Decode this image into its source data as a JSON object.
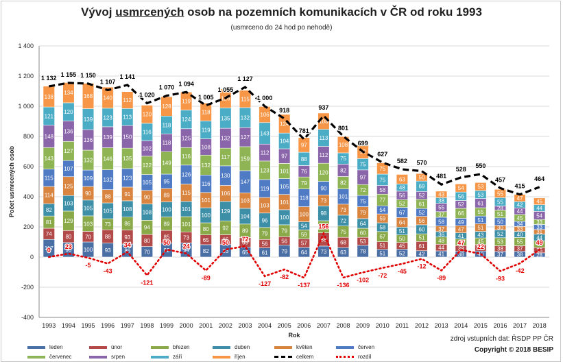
{
  "title": {
    "prefix": "Vývoj ",
    "underlined": "usmrcených",
    "suffix": " osob na pozemních komunikacích v ČR od roku 1993"
  },
  "subtitle": "(usmrceno do 24 hod po nehodě)",
  "source": "zdroj vstupních dat: ŘSDP PP ČR",
  "copyright": "Copyright © 2018 BESIP",
  "chart_data": {
    "type": "bar",
    "stacked": true,
    "xlabel": "Rok",
    "ylabel": "Počet usmrcených osob",
    "ylim": [
      -400,
      1400
    ],
    "yticks": [
      -400,
      -200,
      0,
      200,
      400,
      600,
      800,
      1000,
      1200,
      1400
    ],
    "ytick_labels": [
      "-400",
      "-200",
      "0",
      "200",
      "400",
      "600",
      "800",
      "1 000",
      "1 200",
      "1 400"
    ],
    "categories": [
      "1993",
      "1994",
      "1995",
      "1996",
      "1997",
      "1998",
      "1999",
      "2000",
      "2001",
      "2002",
      "2003",
      "2004",
      "2005",
      "2006",
      "2007",
      "2008",
      "2009",
      "2010",
      "2011",
      "2012",
      "2013",
      "2014",
      "2015",
      "2016",
      "2017",
      "2018"
    ],
    "series": [
      {
        "name": "leden",
        "color": "#4a6fa5",
        "values": [
          117,
          96,
          100,
          93,
          86,
          70,
          92,
          94,
          82,
          83,
          65,
          61,
          79,
          64,
          73,
          63,
          78,
          51,
          52,
          42,
          41,
          38,
          40,
          37,
          38,
          28
        ]
      },
      {
        "name": "únor",
        "color": "#b34a4a",
        "values": [
          74,
          80,
          70,
          88,
          93,
          80,
          85,
          73,
          65,
          65,
          65,
          56,
          56,
          57,
          88,
          68,
          53,
          51,
          45,
          61,
          44,
          38,
          42,
          38,
          37,
          35
        ]
      },
      {
        "name": "březen",
        "color": "#8aaa4a",
        "values": [
          81,
          129,
          103,
          73,
          86,
          94,
          89,
          101,
          80,
          92,
          89,
          79,
          79,
          59,
          80,
          75,
          60,
          67,
          50,
          51,
          48,
          44,
          45,
          53,
          55,
          45
        ]
      },
      {
        "name": "duben",
        "color": "#3d8fa8",
        "values": [
          82,
          103,
          105,
          105,
          108,
          108,
          100,
          101,
          100,
          129,
          104,
          96,
          100,
          54,
          98,
          72,
          64,
          58,
          51,
          60,
          36,
          41,
          43,
          52,
          40,
          44
        ]
      },
      {
        "name": "květen",
        "color": "#d9843f",
        "values": [
          114,
          125,
          90,
          88,
          91,
          90,
          89,
          115,
          101,
          106,
          103,
          103,
          101,
          100,
          73,
          73,
          79,
          59,
          64,
          56,
          37,
          47,
          51,
          30,
          33,
          31
        ]
      },
      {
        "name": "červen",
        "color": "#4f7ac4",
        "values": [
          115,
          107,
          109,
          132,
          123,
          105,
          95,
          126,
          116,
          130,
          147,
          119,
          105,
          118,
          90,
          101,
          75,
          54,
          67,
          52,
          58,
          49,
          51,
          50,
          34,
          33
        ]
      },
      {
        "name": "červenec",
        "color": "#8fb454",
        "values": [
          143,
          127,
          132,
          146,
          135,
          122,
          149,
          116,
          132,
          117,
          159,
          123,
          101,
          79,
          120,
          82,
          72,
          77,
          52,
          61,
          37,
          66,
          55,
          51,
          45,
          33
        ]
      },
      {
        "name": "srpen",
        "color": "#8a65aa",
        "values": [
          148,
          136,
          136,
          139,
          150,
          102,
          118,
          125,
          108,
          132,
          127,
          112,
          97,
          76,
          112,
          82,
          97,
          58,
          56,
          52,
          55,
          52,
          61,
          28,
          44,
          54
        ]
      },
      {
        "name": "září",
        "color": "#4bacc6",
        "values": [
          121,
          120,
          139,
          123,
          113,
          116,
          118,
          124,
          119,
          135,
          132,
          143,
          104,
          88,
          113,
          75,
          75,
          75,
          48,
          69,
          38,
          56,
          53,
          55,
          42,
          44
        ]
      },
      {
        "name": "říjen",
        "color": "#f79646",
        "values": [
          138,
          134,
          168,
          140,
          112,
          120,
          128,
          119,
          118,
          126,
          115,
          106,
          124,
          97,
          108,
          108,
          92,
          75,
          63,
          50,
          43,
          54,
          53,
          55,
          47,
          45
        ]
      }
    ],
    "celkem": {
      "name": "celkem",
      "color": "#000000",
      "values": [
        1132,
        1155,
        1150,
        1107,
        1141,
        1020,
        1070,
        1094,
        1005,
        1055,
        1127,
        1000,
        918,
        781,
        937,
        801,
        699,
        627,
        582,
        570,
        481,
        528,
        550,
        457,
        415,
        464
      ]
    },
    "rozdil": {
      "name": "rozdíl",
      "color": "#e00000",
      "values": [
        0,
        23,
        -5,
        -43,
        34,
        -121,
        50,
        24,
        -89,
        50,
        72,
        -127,
        -82,
        -137,
        156,
        -136,
        -102,
        -72,
        -45,
        -12,
        -89,
        47,
        22,
        -93,
        -42,
        49
      ]
    },
    "legend": [
      "leden",
      "únor",
      "březen",
      "duben",
      "květen",
      "červen",
      "červenec",
      "srpen",
      "září",
      "říjen",
      "celkem",
      "rozdíl"
    ]
  }
}
